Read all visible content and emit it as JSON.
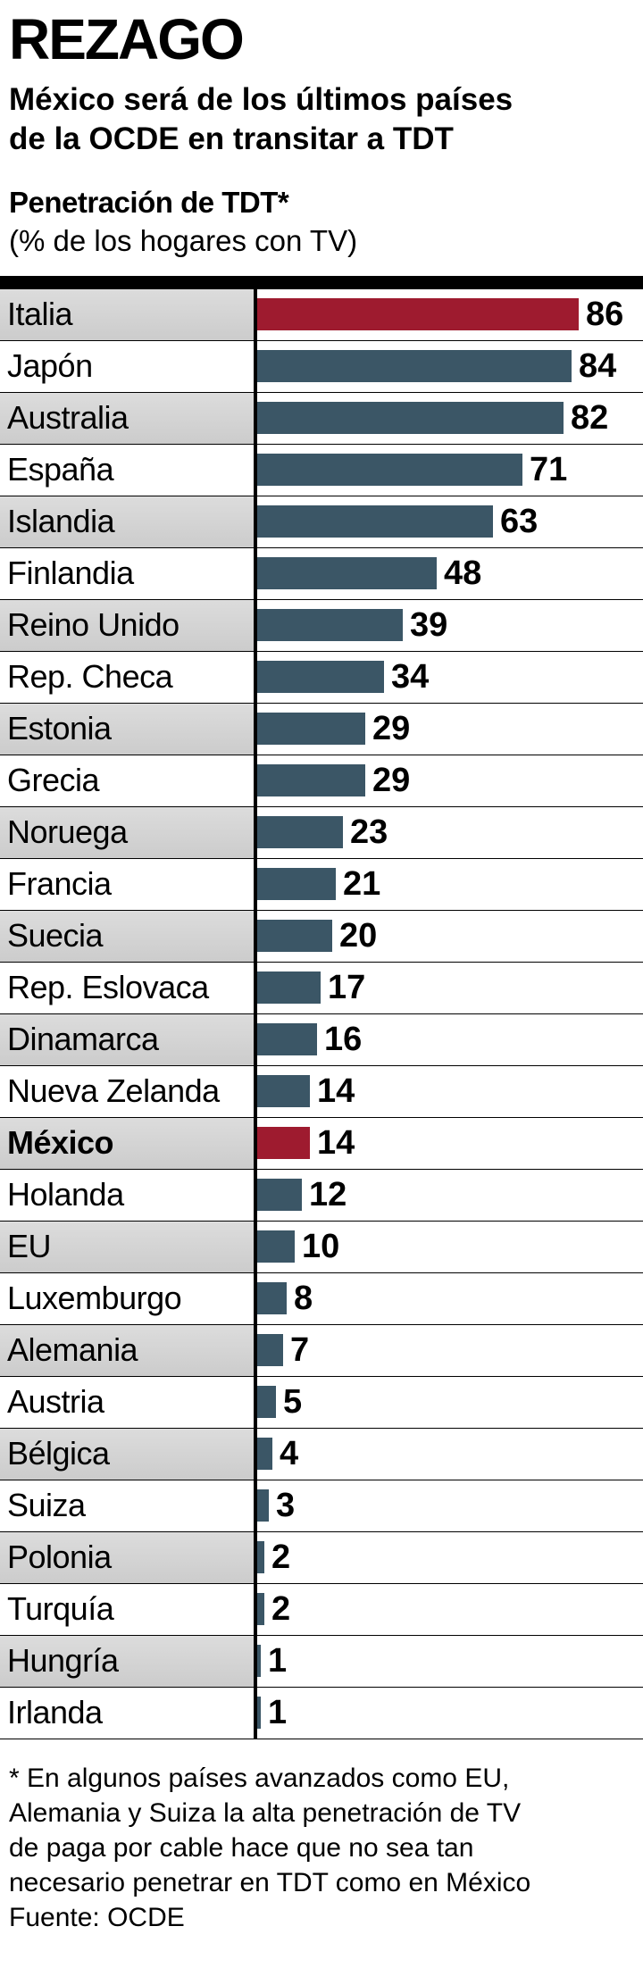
{
  "header": {
    "title": "REZAGO",
    "subtitle_line1": "México será de los últimos países",
    "subtitle_line2": "de la OCDE en transitar a TDT",
    "measure_title": "Penetración de TDT*",
    "measure_subtitle": "(% de los hogares con TV)"
  },
  "chart_data": {
    "type": "bar",
    "orientation": "horizontal",
    "title": "Penetración de TDT*",
    "subtitle": "(% de los hogares con TV)",
    "unit": "% de los hogares con TV",
    "xlim": [
      0,
      86
    ],
    "grid": false,
    "legend": false,
    "categories": [
      "Italia",
      "Japón",
      "Australia",
      "España",
      "Islandia",
      "Finlandia",
      "Reino Unido",
      "Rep. Checa",
      "Estonia",
      "Grecia",
      "Noruega",
      "Francia",
      "Suecia",
      "Rep. Eslovaca",
      "Dinamarca",
      "Nueva Zelanda",
      "México",
      "Holanda",
      "EU",
      "Luxemburgo",
      "Alemania",
      "Austria",
      "Bélgica",
      "Suiza",
      "Polonia",
      "Turquía",
      "Hungría",
      "Irlanda"
    ],
    "values": [
      86,
      84,
      82,
      71,
      63,
      48,
      39,
      34,
      29,
      29,
      23,
      21,
      20,
      17,
      16,
      14,
      14,
      12,
      10,
      8,
      7,
      5,
      4,
      3,
      2,
      2,
      1,
      1
    ],
    "highlight_indices": [
      0,
      16
    ],
    "bold_label_indices": [
      16
    ],
    "bar_color": "#3b5666",
    "highlight_color": "#9e1b2f",
    "stripe_color": "#d4d4d4",
    "axis_color": "#000000"
  },
  "footer": {
    "note_lines": [
      "* En algunos países avanzados como EU,",
      "Alemania y Suiza la alta penetración de TV",
      "de paga por cable hace que no sea tan",
      "necesario penetrar en TDT como en México"
    ],
    "source": "Fuente: OCDE"
  }
}
